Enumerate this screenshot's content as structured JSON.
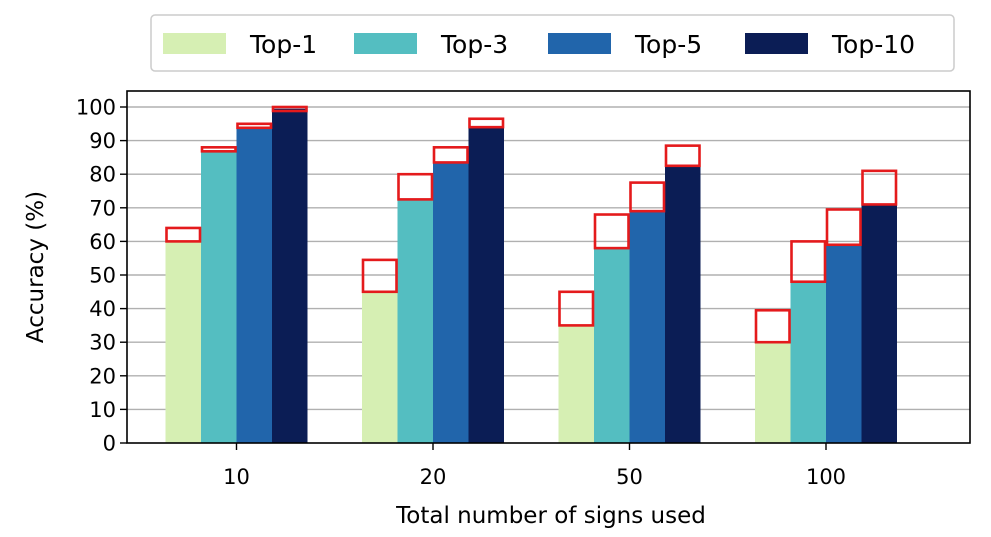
{
  "chart_data": {
    "type": "bar",
    "title": "",
    "xlabel": "Total number of signs used",
    "ylabel": "Accuracy (%)",
    "categories": [
      "10",
      "20",
      "50",
      "100"
    ],
    "ylim": [
      0,
      100
    ],
    "yticks": [
      0,
      10,
      20,
      30,
      40,
      50,
      60,
      70,
      80,
      90,
      100
    ],
    "grid": "horizontal",
    "legend_placement": "top-center",
    "series": [
      {
        "name": "Top-1",
        "color": "#d6efb3",
        "values": [
          60,
          45,
          35,
          30
        ],
        "highlight_top": [
          64,
          54.5,
          45,
          39.5
        ]
      },
      {
        "name": "Top-3",
        "color": "#54bec1",
        "values": [
          87,
          72.5,
          58,
          48
        ],
        "highlight_top": [
          88,
          80,
          68,
          60
        ]
      },
      {
        "name": "Top-5",
        "color": "#2165ab",
        "values": [
          94,
          83.5,
          69,
          59
        ],
        "highlight_top": [
          95,
          88,
          77.5,
          69.5
        ]
      },
      {
        "name": "Top-10",
        "color": "#0b1d55",
        "values": [
          99.5,
          94,
          82.5,
          71
        ],
        "highlight_top": [
          100,
          96.5,
          88.5,
          81
        ]
      }
    ],
    "highlight_box_color": "#e41a1c"
  }
}
